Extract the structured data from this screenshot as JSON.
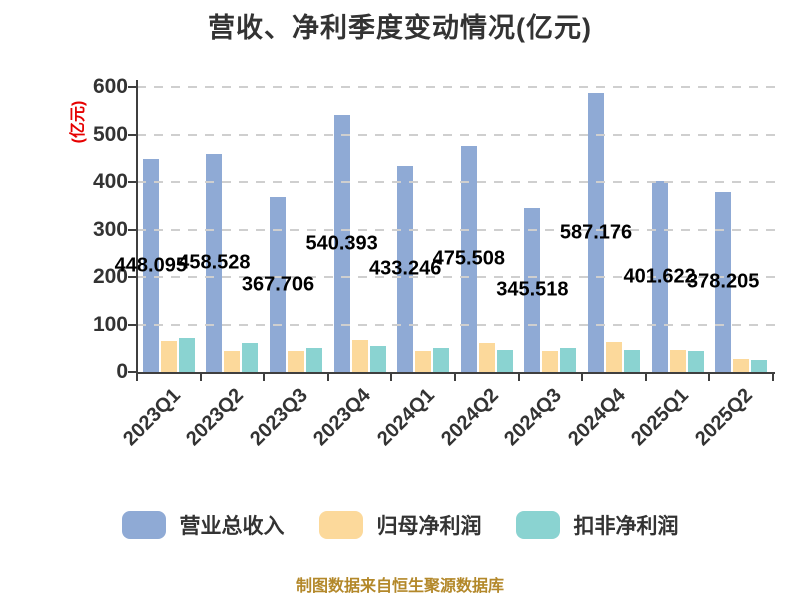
{
  "title": "营收、净利季度变动情况(亿元)",
  "y_axis": {
    "name": "(亿元)",
    "name_color": "#e60000",
    "ticks": [
      0,
      100,
      200,
      300,
      400,
      500,
      600
    ]
  },
  "footer": "制图数据来自恒生聚源数据库",
  "colors": {
    "revenue": "#8faad5",
    "net_profit": "#fcd99b",
    "non_gaap_profit": "#8ad3d1",
    "axis": "#3f3f3f",
    "grid": "#cfcfcf",
    "text": "#333333",
    "value_label": "#000000",
    "footer": "#b3882a"
  },
  "chart_data": {
    "type": "bar",
    "title": "营收、净利季度变动情况(亿元)",
    "categories": [
      "2023Q1",
      "2023Q2",
      "2023Q3",
      "2023Q4",
      "2024Q1",
      "2024Q2",
      "2024Q3",
      "2024Q4",
      "2025Q1",
      "2025Q2"
    ],
    "series": [
      {
        "key": "revenue",
        "name": "营业总收入",
        "color": "#8faad5",
        "values": [
          448.095,
          458.528,
          367.706,
          540.393,
          433.246,
          475.508,
          345.518,
          587.176,
          401.622,
          378.205
        ],
        "data_labels": [
          "448.095",
          "458.528",
          "367.706",
          "540.393",
          "433.246",
          "475.508",
          "345.518",
          "587.176",
          "401.622",
          "378.205"
        ],
        "value_labels_shown": true
      },
      {
        "key": "net_profit",
        "name": "归母净利润",
        "color": "#fcd99b",
        "values": [
          65,
          44,
          44,
          67,
          44,
          61,
          45,
          64,
          46,
          27
        ],
        "value_labels_shown": false,
        "approx": true
      },
      {
        "key": "non_gaap_profit",
        "name": "扣非净利润",
        "color": "#8ad3d1",
        "values": [
          72,
          61,
          51,
          55,
          50,
          47,
          51,
          46,
          44,
          25
        ],
        "value_labels_shown": false,
        "approx": true
      }
    ],
    "ylabel": "(亿元)",
    "xlabel": "",
    "ylim": [
      0,
      600
    ],
    "grid": "dashed-horizontal",
    "grid_over_bars": true,
    "legend_position": "bottom",
    "x_label_rotation": -45,
    "value_label_position": "inside-middle"
  },
  "legend": {
    "items": [
      {
        "label": "营业总收入",
        "color": "#8faad5"
      },
      {
        "label": "归母净利润",
        "color": "#fcd99b"
      },
      {
        "label": "扣非净利润",
        "color": "#8ad3d1"
      }
    ]
  }
}
